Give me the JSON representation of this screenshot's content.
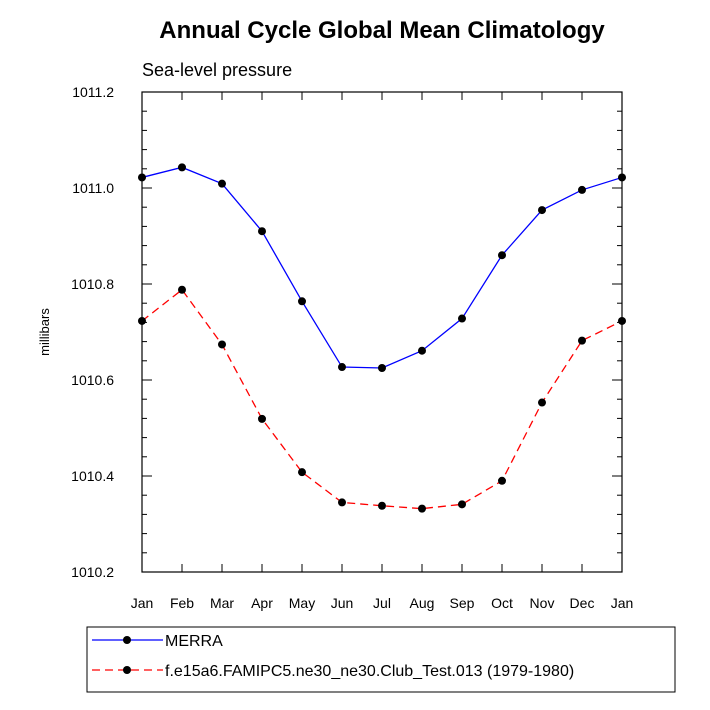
{
  "chart_data": {
    "type": "line",
    "title": "Annual Cycle Global Mean Climatology",
    "subtitle": "Sea-level pressure",
    "xlabel": "",
    "ylabel": "millibars",
    "categories": [
      "Jan",
      "Feb",
      "Mar",
      "Apr",
      "May",
      "Jun",
      "Jul",
      "Aug",
      "Sep",
      "Oct",
      "Nov",
      "Dec",
      "Jan"
    ],
    "ylim": [
      1010.2,
      1011.2
    ],
    "yticks": [
      "1010.2",
      "1010.4",
      "1010.6",
      "1010.8",
      "1011.0",
      "1011.2"
    ],
    "grid": false,
    "legend_position": "bottom",
    "series": [
      {
        "name": "MERRA",
        "color": "#0000ff",
        "line_style": "solid",
        "marker": "filled-circle",
        "values": [
          1011.022,
          1011.043,
          1011.009,
          1010.91,
          1010.764,
          1010.627,
          1010.625,
          1010.661,
          1010.728,
          1010.86,
          1010.954,
          1010.996,
          1011.022
        ]
      },
      {
        "name": "f.e15a6.FAMIPC5.ne30_ne30.Club_Test.013 (1979-1980)",
        "color": "#ff0000",
        "line_style": "dashed",
        "marker": "filled-circle",
        "values": [
          1010.723,
          1010.788,
          1010.674,
          1010.519,
          1010.408,
          1010.345,
          1010.338,
          1010.332,
          1010.341,
          1010.39,
          1010.553,
          1010.682,
          1010.723
        ]
      }
    ]
  }
}
